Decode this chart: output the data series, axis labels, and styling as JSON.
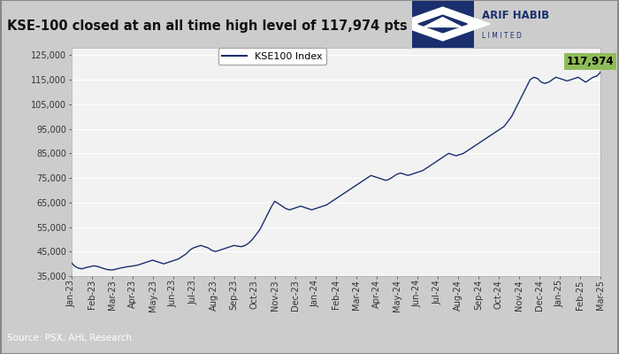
{
  "title": "KSE-100 closed at an all time high level of 117,974 pts",
  "source_text": "Source: PSX, AHL Research",
  "legend_label": "KSE100 Index",
  "annotation_value": "117,974",
  "annotation_color": "#8fbc5a",
  "line_color": "#1a2f6e",
  "plot_bg_color": "#f2f2f2",
  "header_bg": "#e0e0e0",
  "footer_bg": "#1a2f6e",
  "footer_text_color": "#ffffff",
  "border_color": "#999999",
  "ylim": [
    35000,
    128000
  ],
  "yticks": [
    35000,
    45000,
    55000,
    65000,
    75000,
    85000,
    95000,
    105000,
    115000,
    125000
  ],
  "ytick_labels": [
    "35,000",
    "45,000",
    "55,000",
    "65,000",
    "75,000",
    "85,000",
    "95,000",
    "105,000",
    "115,000",
    "125,000"
  ],
  "xtick_labels": [
    "Jan-23",
    "Feb-23",
    "Mar-23",
    "Apr-23",
    "May-23",
    "Jun-23",
    "Jul-23",
    "Aug-23",
    "Sep-23",
    "Oct-23",
    "Nov-23",
    "Dec-23",
    "Jan-24",
    "Feb-24",
    "Mar-24",
    "Apr-24",
    "May-24",
    "Jun-24",
    "Jul-24",
    "Aug-24",
    "Sep-24",
    "Oct-24",
    "Nov-24",
    "Dec-24",
    "Jan-25",
    "Feb-25",
    "Mar-25"
  ],
  "title_fontsize": 10.5,
  "source_fontsize": 7.5,
  "tick_fontsize": 7,
  "legend_fontsize": 8,
  "series": [
    40500,
    39000,
    38200,
    38000,
    38500,
    38800,
    39200,
    39000,
    38500,
    38000,
    37600,
    37500,
    37800,
    38200,
    38500,
    38800,
    39000,
    39200,
    39500,
    40000,
    40500,
    41000,
    41500,
    41000,
    40500,
    40000,
    40500,
    41000,
    41500,
    42000,
    43000,
    44000,
    45500,
    46500,
    47000,
    47500,
    47000,
    46500,
    45500,
    45000,
    45500,
    46000,
    46500,
    47000,
    47500,
    47200,
    47000,
    47500,
    48500,
    50000,
    52000,
    54000,
    57000,
    60000,
    63000,
    65500,
    64500,
    63500,
    62500,
    62000,
    62500,
    63000,
    63500,
    63000,
    62500,
    62000,
    62500,
    63000,
    63500,
    64000,
    65000,
    66000,
    67000,
    68000,
    69000,
    70000,
    71000,
    72000,
    73000,
    74000,
    75000,
    76000,
    75500,
    75000,
    74500,
    74000,
    74500,
    75500,
    76500,
    77000,
    76500,
    76000,
    76500,
    77000,
    77500,
    78000,
    79000,
    80000,
    81000,
    82000,
    83000,
    84000,
    85000,
    84500,
    84000,
    84500,
    85000,
    86000,
    87000,
    88000,
    89000,
    90000,
    91000,
    92000,
    93000,
    94000,
    95000,
    96000,
    98000,
    100000,
    103000,
    106000,
    109000,
    112000,
    115000,
    116000,
    115500,
    114000,
    113500,
    114000,
    115000,
    116000,
    115500,
    115000,
    114500,
    115000,
    115500,
    116000,
    115000,
    114000,
    115000,
    116000,
    116500,
    117974
  ]
}
